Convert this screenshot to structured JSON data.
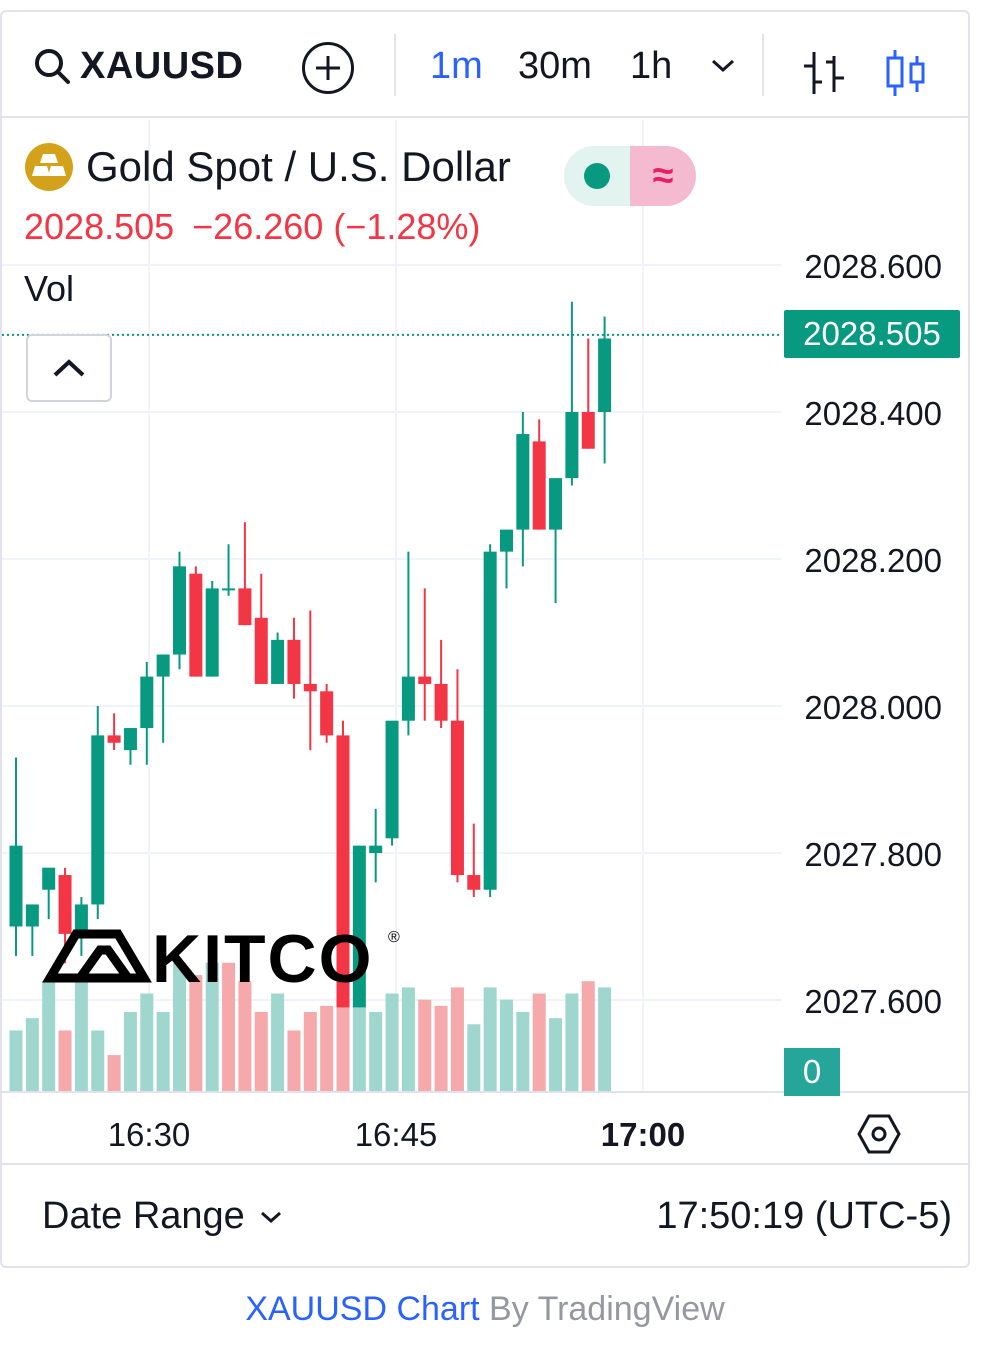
{
  "toolbar": {
    "symbol": "XAUUSD",
    "intervals": [
      "1m",
      "30m",
      "1h"
    ],
    "active_interval": "1m",
    "add_icon": "plus-circle-icon",
    "search_icon": "search-icon",
    "more_icon": "chevron-down-icon",
    "bar_style_icon": "bars-icon",
    "candle_style_icon": "candles-icon"
  },
  "legend": {
    "title": "Gold Spot / U.S. Dollar",
    "last": "2028.505",
    "change": "−26.260",
    "change_pct": "(−1.28%)",
    "volume_label": "Vol",
    "status_market_color": "#089981",
    "status_delayed_symbol": "≈"
  },
  "price_axis": {
    "labels": [
      "2028.600",
      "2028.400",
      "2028.200",
      "2028.000",
      "2027.800",
      "2027.600"
    ],
    "last_price_tag": "2028.505",
    "volume_tag": "0"
  },
  "time_axis": {
    "labels": [
      "16:30",
      "16:45",
      "17:00"
    ],
    "bold_label": "17:00"
  },
  "colors": {
    "up": "#089981",
    "down": "#f23645",
    "up_volume": "#9fd6ce",
    "down_volume": "#f5a9ab",
    "accent": "#2962ff"
  },
  "chart_data": {
    "type": "candlestick",
    "interval": "1m",
    "ylim": [
      2027.48,
      2028.73
    ],
    "candles": [
      {
        "o": 2027.7,
        "h": 2027.93,
        "l": 2027.66,
        "c": 2027.81
      },
      {
        "o": 2027.7,
        "h": 2027.73,
        "l": 2027.66,
        "c": 2027.73
      },
      {
        "o": 2027.75,
        "h": 2027.77,
        "l": 2027.71,
        "c": 2027.78
      },
      {
        "o": 2027.77,
        "h": 2027.78,
        "l": 2027.65,
        "c": 2027.69
      },
      {
        "o": 2027.69,
        "h": 2027.74,
        "l": 2027.66,
        "c": 2027.73
      },
      {
        "o": 2027.73,
        "h": 2028.0,
        "l": 2027.71,
        "c": 2027.96
      },
      {
        "o": 2027.96,
        "h": 2027.99,
        "l": 2027.94,
        "c": 2027.95
      },
      {
        "o": 2027.94,
        "h": 2027.97,
        "l": 2027.92,
        "c": 2027.97
      },
      {
        "o": 2027.97,
        "h": 2028.06,
        "l": 2027.92,
        "c": 2028.04
      },
      {
        "o": 2028.04,
        "h": 2028.07,
        "l": 2027.95,
        "c": 2028.07
      },
      {
        "o": 2028.07,
        "h": 2028.21,
        "l": 2028.05,
        "c": 2028.19
      },
      {
        "o": 2028.18,
        "h": 2028.19,
        "l": 2028.04,
        "c": 2028.04
      },
      {
        "o": 2028.04,
        "h": 2028.17,
        "l": 2028.04,
        "c": 2028.16
      },
      {
        "o": 2028.16,
        "h": 2028.22,
        "l": 2028.15,
        "c": 2028.16
      },
      {
        "o": 2028.16,
        "h": 2028.25,
        "l": 2028.11,
        "c": 2028.11
      },
      {
        "o": 2028.12,
        "h": 2028.18,
        "l": 2028.03,
        "c": 2028.03
      },
      {
        "o": 2028.03,
        "h": 2028.1,
        "l": 2028.03,
        "c": 2028.09
      },
      {
        "o": 2028.09,
        "h": 2028.12,
        "l": 2028.01,
        "c": 2028.03
      },
      {
        "o": 2028.03,
        "h": 2028.13,
        "l": 2027.94,
        "c": 2028.02
      },
      {
        "o": 2028.02,
        "h": 2028.03,
        "l": 2027.95,
        "c": 2027.96
      },
      {
        "o": 2027.96,
        "h": 2027.98,
        "l": 2027.59,
        "c": 2027.59
      },
      {
        "o": 2027.59,
        "h": 2027.81,
        "l": 2027.59,
        "c": 2027.81
      },
      {
        "o": 2027.8,
        "h": 2027.86,
        "l": 2027.76,
        "c": 2027.81
      },
      {
        "o": 2027.82,
        "h": 2027.98,
        "l": 2027.81,
        "c": 2027.98
      },
      {
        "o": 2027.98,
        "h": 2028.21,
        "l": 2027.96,
        "c": 2028.04
      },
      {
        "o": 2028.04,
        "h": 2028.16,
        "l": 2027.98,
        "c": 2028.03
      },
      {
        "o": 2028.03,
        "h": 2028.09,
        "l": 2027.97,
        "c": 2027.98
      },
      {
        "o": 2027.98,
        "h": 2028.05,
        "l": 2027.76,
        "c": 2027.77
      },
      {
        "o": 2027.77,
        "h": 2027.84,
        "l": 2027.74,
        "c": 2027.75
      },
      {
        "o": 2027.75,
        "h": 2028.22,
        "l": 2027.74,
        "c": 2028.21
      },
      {
        "o": 2028.21,
        "h": 2028.24,
        "l": 2028.16,
        "c": 2028.24
      },
      {
        "o": 2028.24,
        "h": 2028.4,
        "l": 2028.19,
        "c": 2028.37
      },
      {
        "o": 2028.36,
        "h": 2028.39,
        "l": 2028.24,
        "c": 2028.24
      },
      {
        "o": 2028.24,
        "h": 2028.31,
        "l": 2028.14,
        "c": 2028.31
      },
      {
        "o": 2028.31,
        "h": 2028.55,
        "l": 2028.3,
        "c": 2028.4
      },
      {
        "o": 2028.4,
        "h": 2028.5,
        "l": 2028.35,
        "c": 2028.35
      },
      {
        "o": 2028.4,
        "h": 2028.53,
        "l": 2028.33,
        "c": 2028.5
      }
    ],
    "volume": [
      1.0,
      1.2,
      1.8,
      1.0,
      1.9,
      1.0,
      0.6,
      1.3,
      1.6,
      1.3,
      2.1,
      1.9,
      2.1,
      2.1,
      1.8,
      1.3,
      1.6,
      1.0,
      1.3,
      1.4,
      1.4,
      1.4,
      1.3,
      1.6,
      1.7,
      1.5,
      1.4,
      1.7,
      1.1,
      1.7,
      1.5,
      1.3,
      1.6,
      1.2,
      1.6,
      1.8,
      1.7
    ],
    "volume_up": [
      true,
      true,
      true,
      false,
      true,
      true,
      false,
      true,
      true,
      true,
      true,
      false,
      true,
      false,
      false,
      false,
      true,
      false,
      false,
      false,
      false,
      true,
      true,
      true,
      true,
      false,
      false,
      false,
      true,
      true,
      true,
      true,
      false,
      true,
      true,
      false,
      true
    ]
  },
  "watermark": {
    "brand": "KITCO",
    "registered_mark": "®"
  },
  "footer": {
    "date_range_label": "Date Range",
    "clock": "17:50:19 (UTC-5)"
  },
  "attribution": {
    "link_text": "XAUUSD Chart",
    "rest_text": " By TradingView"
  }
}
